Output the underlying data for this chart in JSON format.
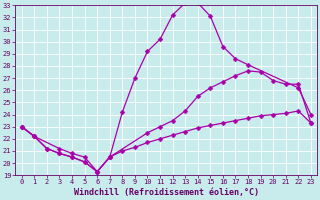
{
  "xlabel": "Windchill (Refroidissement éolien,°C)",
  "bg_color": "#c8ecec",
  "grid_color": "#ffffff",
  "line_color": "#aa00aa",
  "line1_x": [
    0,
    1,
    2,
    3,
    4,
    5,
    6,
    7,
    8,
    9,
    10,
    11,
    12,
    13,
    14,
    15,
    16,
    17,
    18,
    22,
    23
  ],
  "line1_y": [
    23.0,
    22.2,
    21.2,
    20.8,
    20.5,
    20.1,
    19.3,
    20.5,
    24.2,
    27.0,
    29.2,
    30.2,
    32.2,
    33.2,
    33.2,
    32.1,
    29.6,
    28.6,
    28.1,
    26.2,
    24.0
  ],
  "line2_x": [
    0,
    1,
    2,
    3,
    4,
    5,
    6,
    7,
    10,
    11,
    12,
    13,
    14,
    15,
    16,
    17,
    18,
    19,
    20,
    21,
    22,
    23
  ],
  "line2_y": [
    23.0,
    22.2,
    21.2,
    20.8,
    20.5,
    20.1,
    19.3,
    20.5,
    22.5,
    23.0,
    23.5,
    24.3,
    25.5,
    26.2,
    26.7,
    27.2,
    27.6,
    27.5,
    26.8,
    26.5,
    26.5,
    23.3
  ],
  "line3_x": [
    0,
    1,
    3,
    4,
    5,
    6,
    7,
    8,
    9,
    10,
    11,
    12,
    13,
    14,
    15,
    16,
    17,
    18,
    19,
    20,
    21,
    22,
    23
  ],
  "line3_y": [
    23.0,
    22.2,
    21.2,
    20.8,
    20.5,
    19.3,
    20.5,
    21.0,
    21.3,
    21.7,
    22.0,
    22.3,
    22.6,
    22.9,
    23.1,
    23.3,
    23.5,
    23.7,
    23.9,
    24.0,
    24.1,
    24.3,
    23.3
  ],
  "ylim": [
    19,
    33
  ],
  "xlim": [
    -0.5,
    23.5
  ],
  "yticks": [
    19,
    20,
    21,
    22,
    23,
    24,
    25,
    26,
    27,
    28,
    29,
    30,
    31,
    32,
    33
  ],
  "xticks": [
    0,
    1,
    2,
    3,
    4,
    5,
    6,
    7,
    8,
    9,
    10,
    11,
    12,
    13,
    14,
    15,
    16,
    17,
    18,
    19,
    20,
    21,
    22,
    23
  ],
  "markersize": 2.5,
  "linewidth": 0.9,
  "tick_fontsize": 5.0,
  "xlabel_fontsize": 6.0
}
